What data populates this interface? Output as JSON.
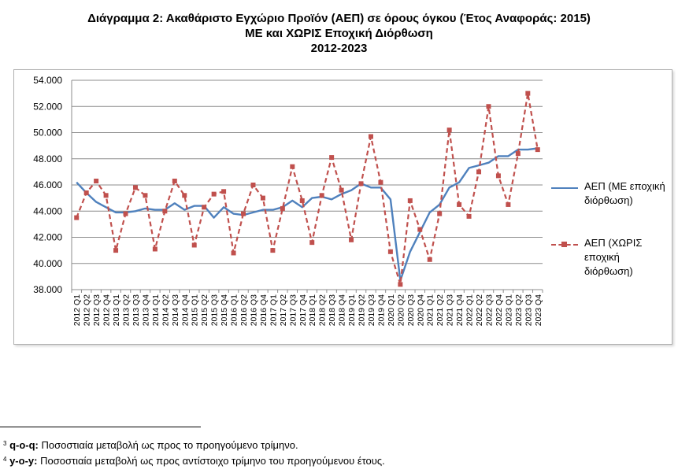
{
  "title_lines": [
    "Διάγραμμα 2: Ακαθάριστο Εγχώριο Προϊόν (ΑΕΠ) σε όρους όγκου (Έτος Αναφοράς: 2015)",
    "ΜΕ και ΧΩΡΙΣ Εποχική Διόρθωση",
    "2012-2023"
  ],
  "chart_data": {
    "type": "line",
    "title": "Διάγραμμα 2: Ακαθάριστο Εγχώριο Προϊόν (ΑΕΠ) σε όρους όγκου (Έτος Αναφοράς: 2015) ΜΕ και ΧΩΡΙΣ Εποχική Διόρθωση 2012-2023",
    "xlabel": "",
    "ylabel": "",
    "ylim": [
      38000,
      54000
    ],
    "yticks": [
      "38.000",
      "40.000",
      "42.000",
      "44.000",
      "46.000",
      "48.000",
      "50.000",
      "52.000",
      "54.000"
    ],
    "grid": true,
    "legend_position": "right",
    "categories": [
      "2012 Q1",
      "2012 Q2",
      "2012 Q3",
      "2012 Q4",
      "2013 Q1",
      "2013 Q2",
      "2013 Q3",
      "2013 Q4",
      "2014 Q1",
      "2014 Q2",
      "2014 Q3",
      "2014 Q4",
      "2015 Q1",
      "2015 Q2",
      "2015 Q3",
      "2015 Q4",
      "2016 Q1",
      "2016 Q2",
      "2016 Q3",
      "2016 Q4",
      "2017 Q1",
      "2017 Q2",
      "2017 Q3",
      "2017 Q4",
      "2018 Q1",
      "2018 Q2",
      "2018 Q3",
      "2018 Q4",
      "2019 Q1",
      "2019 Q2",
      "2019 Q3",
      "2019 Q4",
      "2020 Q1",
      "2020 Q2",
      "2020 Q3",
      "2020 Q4",
      "2021 Q1",
      "2021 Q2",
      "2021 Q3",
      "2021 Q4",
      "2022 Q1",
      "2022 Q2",
      "2022 Q3",
      "2022 Q4",
      "2023 Q1",
      "2023 Q2",
      "2023 Q3",
      "2023 Q4"
    ],
    "series": [
      {
        "name": "ΑΕΠ (ΜΕ εποχική διόρθωση)",
        "color": "#4f81bd",
        "style": "solid",
        "values": [
          46200,
          45400,
          44700,
          44300,
          43900,
          43900,
          44000,
          44200,
          44100,
          44100,
          44600,
          44100,
          44400,
          44400,
          43500,
          44300,
          43800,
          43700,
          43900,
          44100,
          44100,
          44300,
          44800,
          44300,
          45000,
          45100,
          44900,
          45300,
          45600,
          46100,
          45800,
          45800,
          44900,
          38700,
          40900,
          42400,
          43900,
          44500,
          45800,
          46200,
          47300,
          47500,
          47700,
          48200,
          48200,
          48700,
          48700,
          48800
        ]
      },
      {
        "name": "ΑΕΠ (ΧΩΡΙΣ εποχική διόρθωση)",
        "color": "#c0504d",
        "style": "dashed",
        "marker": "square",
        "values": [
          43500,
          45400,
          46300,
          45200,
          41000,
          43800,
          45800,
          45200,
          41100,
          44000,
          46300,
          45200,
          41400,
          44300,
          45300,
          45500,
          40800,
          43800,
          46000,
          45000,
          41000,
          44200,
          47400,
          44800,
          41600,
          45200,
          48100,
          45600,
          41800,
          46100,
          49700,
          46200,
          40900,
          38400,
          44800,
          42600,
          40300,
          43800,
          50200,
          44500,
          43600,
          47000,
          52000,
          46700,
          44500,
          48400,
          53000,
          48700
        ]
      }
    ]
  },
  "footnotes": [
    {
      "num": "3",
      "bold": "q-o-q:",
      "text": " Ποσοστιαία μεταβολή ως προς το προηγούμενο τρίμηνο."
    },
    {
      "num": "4",
      "bold": "y-o-y:",
      "text": " Ποσοστιαία μεταβολή ως προς αντίστοιχο τρίμηνο του προηγούμενου έτους."
    }
  ]
}
